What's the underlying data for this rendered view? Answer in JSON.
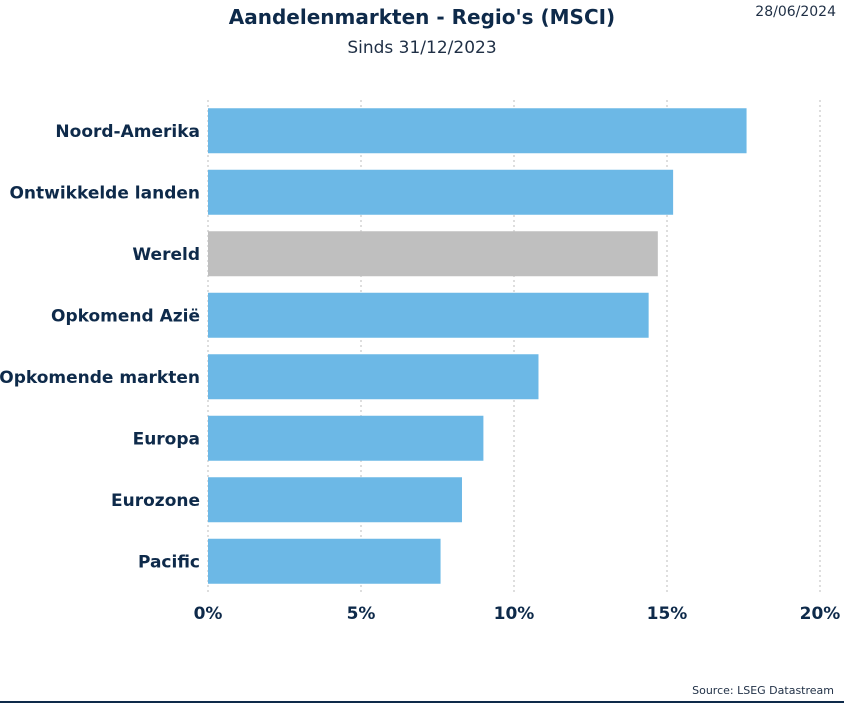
{
  "header": {
    "title": "Aandelenmarkten - Regio's (MSCI)",
    "subtitle": "Sinds 31/12/2023",
    "date": "28/06/2024"
  },
  "footer": {
    "source": "Source: LSEG Datastream"
  },
  "colors": {
    "bar": "#6cb8e6",
    "highlight": "#bfbfbf",
    "text": "#0e2a4a",
    "grid": "#bdbdbd"
  },
  "chart_data": {
    "type": "bar",
    "orientation": "horizontal",
    "categories": [
      "Noord-Amerika",
      "Ontwikkelde landen",
      "Wereld",
      "Opkomend Azië",
      "Opkomende markten",
      "Europa",
      "Eurozone",
      "Pacific"
    ],
    "values": [
      17.6,
      15.2,
      14.7,
      14.4,
      10.8,
      9.0,
      8.3,
      7.6
    ],
    "highlight": "Wereld",
    "xlim": [
      0,
      20
    ],
    "xticks": [
      0,
      5,
      10,
      15,
      20
    ],
    "xtick_labels": [
      "0%",
      "5%",
      "10%",
      "15%",
      "20%"
    ],
    "grid": "vertical dotted",
    "legend": "none"
  }
}
